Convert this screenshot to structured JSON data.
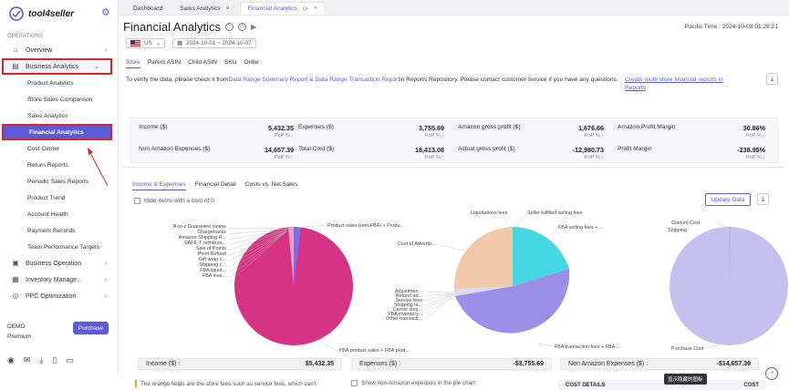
{
  "app": {
    "name": "tool4seller"
  },
  "sidebar": {
    "section": "OPERATIONS",
    "items": [
      {
        "label": "Overview",
        "icon": "home-icon"
      },
      {
        "label": "Business Analytics",
        "icon": "chart-icon"
      },
      {
        "label": "Product Analytics"
      },
      {
        "label": "Store Sales Comparison"
      },
      {
        "label": "Sales Analytics"
      },
      {
        "label": "Financial Analytics"
      },
      {
        "label": "Cost Center"
      },
      {
        "label": "Return Reports"
      },
      {
        "label": "Periodic Sales Reports"
      },
      {
        "label": "Product Trend"
      },
      {
        "label": "Account Health"
      },
      {
        "label": "Payment Records"
      },
      {
        "label": "Team Performance Targets"
      },
      {
        "label": "Business Operation",
        "icon": "briefcase-icon"
      },
      {
        "label": "Inventory Manage...",
        "icon": "box-icon"
      },
      {
        "label": "PPC Optimization",
        "icon": "target-icon"
      }
    ],
    "plan": "DEMO",
    "plan_sub": "Premium",
    "purchase_label": "Purchase"
  },
  "tabs": [
    {
      "label": "Dashboard"
    },
    {
      "label": "Sales Analytics"
    },
    {
      "label": "Financial Analytics"
    }
  ],
  "page": {
    "title": "Financial Analytics",
    "pacific_time": "Pacific Time : 2024-10-08 01:28:21",
    "marketplace": "US",
    "date_range": "2024-10-01 ~ 2024-10-07",
    "view_tabs": [
      "Store",
      "Parent ASIN",
      "Child ASIN",
      "SKU",
      "Order"
    ],
    "notice_pre": "To verify the data, please check it from",
    "notice_link": "Data Range Summary Report & Data Range Transaction Report",
    "notice_post": "in Reports Repository. Please contact customer service if you have any questions.",
    "multi_store": "Create multi-store financial reports in Reports"
  },
  "metrics": [
    {
      "label": "Income ($)",
      "value": "5,432.35",
      "pop": "PoP % ↓"
    },
    {
      "label": "Expenses ($)",
      "value": "3,755.69",
      "pop": "PoP % ↓"
    },
    {
      "label": "Amazon gross profit ($)",
      "value": "1,676.66",
      "pop": "PoP % ↓"
    },
    {
      "label": "Amazon Profit Margin",
      "value": "30.86%",
      "pop": "PoP % ↓"
    },
    {
      "label": "Non Amazon Expenses ($)",
      "value": "14,657.39",
      "pop": "PoP % ↑"
    },
    {
      "label": "Total Cost ($)",
      "value": "18,413.08",
      "pop": "PoP % ↑"
    },
    {
      "label": "Actual gross profit ($)",
      "value": "-12,980.73",
      "pop": "PoP % ↓"
    },
    {
      "label": "Profit Margin",
      "value": "-238.95%",
      "pop": "PoP % ↓"
    }
  ],
  "chart_tabs": [
    "Income & Expenses",
    "Financial Detail",
    "Costs vs. Net Sales"
  ],
  "hide_zero": "Hide items with a cost of 0",
  "update_label": "Update Data",
  "pies": {
    "income": {
      "labels": [
        "A-to-z Guarantee claims",
        "Product sales (non-FBA) + Produ...",
        "Chargebacks",
        "Amazon Shipping R...",
        "SAFE-T reimburs...",
        "Sale of Points",
        "Point Refund",
        "Gift wrap c...",
        "Shipping c...",
        "FBA liquid...",
        "FBA inve...",
        "FBA product sales + FBA prod..."
      ]
    },
    "expenses": {
      "labels": [
        "Liquidations fees",
        "Seller fulfilled selling fees",
        "FBA selling fees + ...",
        "Cost of Advertis...",
        "Adjustmen...",
        "Refund ad...",
        "Service fees",
        "Shipping la...",
        "Carrier ship...",
        "FBA inventory...",
        "Other transacti...",
        "FBA transaction fees + FBA ..."
      ]
    },
    "non_amazon": {
      "labels": [
        "Custom Cost",
        "Shipping",
        "Purchase Cost"
      ]
    }
  },
  "totals": [
    {
      "label": "Income ($) :",
      "value": "$5,432.35"
    },
    {
      "label": "Expenses ($) :",
      "value": "-$3,755.69"
    },
    {
      "label": "Non Amazon Expenses ($) :",
      "value": "-$14,657.39"
    }
  ],
  "foot_note": "The orange fields are the store fees such as service fees, which can't",
  "show_non_amazon": "Show non-Amazon expenses in the pie chart",
  "cost_details": {
    "left": "COST DETAILS",
    "right": "COST"
  },
  "tooltip": "显示隐藏的图标",
  "colors": {
    "accent": "#5b5bd6",
    "highlight": "#d9262b",
    "income_main": "#d63384",
    "exp_blue": "#9b8fe8",
    "exp_cyan": "#45d7e3",
    "exp_tan": "#f0c9a8",
    "non_amazon": "#c5c0ee"
  }
}
